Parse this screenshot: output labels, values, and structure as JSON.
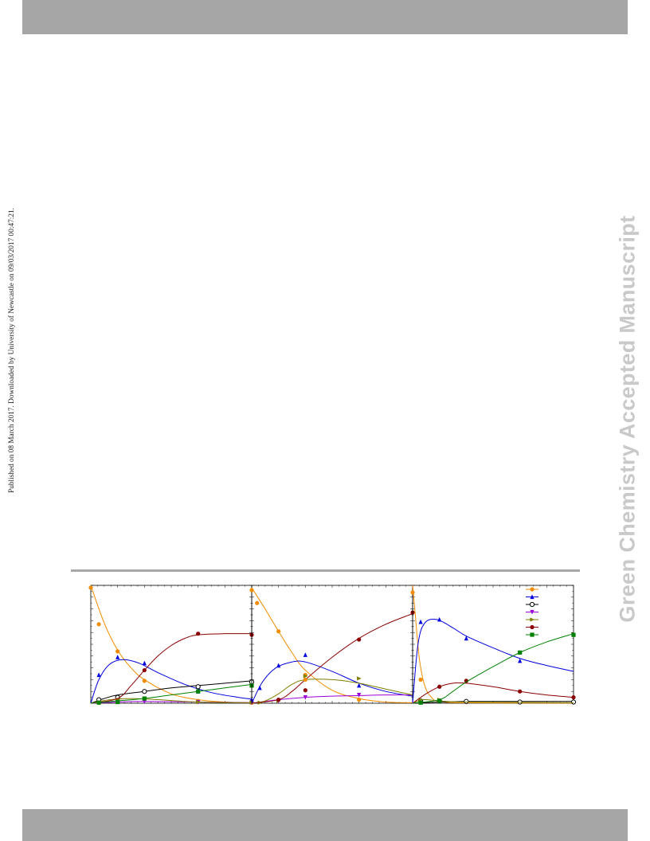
{
  "side_note": "Published on 08 March 2017. Downloaded by University of Newcastle on 09/03/2017 00:47:21.",
  "watermark": "Green Chemistry Accepted Manuscript",
  "chart_data": [
    {
      "type": "line",
      "title": "",
      "ylim": [
        0,
        1
      ],
      "xlim": [
        0,
        6
      ],
      "grid": false,
      "series": [
        {
          "color": "#f28c00",
          "marker": "circle",
          "points": [
            [
              0,
              0.98
            ],
            [
              0.3,
              0.67
            ],
            [
              1,
              0.44
            ],
            [
              2,
              0.19
            ],
            [
              4,
              0.02
            ],
            [
              6,
              0.005
            ]
          ],
          "curve": [
            [
              0,
              1
            ],
            [
              0.5,
              0.68
            ],
            [
              1,
              0.45
            ],
            [
              1.5,
              0.3
            ],
            [
              2,
              0.2
            ],
            [
              3,
              0.08
            ],
            [
              4,
              0.03
            ],
            [
              5,
              0.01
            ],
            [
              6,
              0.003
            ]
          ]
        },
        {
          "color": "#0000dd",
          "marker": "triangle-up",
          "points": [
            [
              0.3,
              0.24
            ],
            [
              1,
              0.39
            ],
            [
              2,
              0.34
            ],
            [
              4,
              0.1
            ],
            [
              6,
              0.03
            ]
          ],
          "curve": [
            [
              0,
              0
            ],
            [
              0.3,
              0.2
            ],
            [
              0.7,
              0.33
            ],
            [
              1.2,
              0.37
            ],
            [
              1.8,
              0.34
            ],
            [
              2.5,
              0.26
            ],
            [
              3.5,
              0.16
            ],
            [
              4.5,
              0.09
            ],
            [
              5.5,
              0.05
            ],
            [
              6,
              0.035
            ]
          ]
        },
        {
          "color": "#000000",
          "marker": "circle-open",
          "points": [
            [
              0.3,
              0.03
            ],
            [
              1,
              0.05
            ],
            [
              2,
              0.1
            ],
            [
              4,
              0.14
            ],
            [
              6,
              0.18
            ]
          ],
          "curve": [
            [
              0,
              0
            ],
            [
              0.5,
              0.04
            ],
            [
              1,
              0.07
            ],
            [
              2,
              0.1
            ],
            [
              3,
              0.13
            ],
            [
              4,
              0.15
            ],
            [
              5,
              0.17
            ],
            [
              6,
              0.19
            ]
          ]
        },
        {
          "color": "#9b00d8",
          "marker": "triangle-down",
          "points": [
            [
              0.3,
              0.005
            ],
            [
              1,
              0.01
            ],
            [
              2,
              0.015
            ],
            [
              4,
              0.01
            ],
            [
              6,
              0.005
            ]
          ],
          "curve": [
            [
              0,
              0
            ],
            [
              1,
              0.01
            ],
            [
              2,
              0.015
            ],
            [
              4,
              0.01
            ],
            [
              6,
              0.005
            ]
          ]
        },
        {
          "color": "#7f7f00",
          "marker": "triangle-right",
          "points": [
            [
              0.3,
              0.01
            ],
            [
              1,
              0.03
            ],
            [
              2,
              0.04
            ],
            [
              4,
              0.01
            ],
            [
              6,
              0.005
            ]
          ],
          "curve": [
            [
              0,
              0
            ],
            [
              0.7,
              0.03
            ],
            [
              1.5,
              0.04
            ],
            [
              2.5,
              0.03
            ],
            [
              4,
              0.01
            ],
            [
              6,
              0.004
            ]
          ]
        },
        {
          "color": "#8b0000",
          "marker": "circle",
          "points": [
            [
              2,
              0.28
            ],
            [
              4,
              0.59
            ],
            [
              6,
              0.58
            ]
          ],
          "curve": [
            [
              0,
              0
            ],
            [
              1,
              0.04
            ],
            [
              1.5,
              0.15
            ],
            [
              2,
              0.28
            ],
            [
              2.5,
              0.4
            ],
            [
              3,
              0.49
            ],
            [
              3.5,
              0.55
            ],
            [
              4,
              0.58
            ],
            [
              5,
              0.59
            ],
            [
              6,
              0.59
            ]
          ]
        },
        {
          "color": "#008000",
          "marker": "square",
          "points": [
            [
              0.3,
              0.005
            ],
            [
              1,
              0.01
            ],
            [
              2,
              0.04
            ],
            [
              4,
              0.1
            ],
            [
              6,
              0.15
            ]
          ],
          "curve": [
            [
              0,
              0
            ],
            [
              1,
              0.02
            ],
            [
              2,
              0.04
            ],
            [
              3,
              0.07
            ],
            [
              4,
              0.1
            ],
            [
              5,
              0.13
            ],
            [
              6,
              0.16
            ]
          ]
        }
      ]
    },
    {
      "type": "line",
      "title": "",
      "ylim": [
        0,
        1
      ],
      "xlim": [
        0,
        6
      ],
      "grid": false,
      "series": [
        {
          "color": "#f28c00",
          "marker": "circle",
          "points": [
            [
              0,
              0.96
            ],
            [
              0.2,
              0.85
            ],
            [
              1,
              0.61
            ],
            [
              2,
              0.24
            ],
            [
              4,
              0.03
            ]
          ],
          "curve": [
            [
              0,
              0.98
            ],
            [
              0.5,
              0.8
            ],
            [
              1,
              0.61
            ],
            [
              1.5,
              0.43
            ],
            [
              2,
              0.28
            ],
            [
              3,
              0.11
            ],
            [
              4,
              0.04
            ],
            [
              5,
              0.01
            ],
            [
              6,
              0.004
            ]
          ]
        },
        {
          "color": "#0000dd",
          "marker": "triangle-up",
          "points": [
            [
              0.3,
              0.13
            ],
            [
              1,
              0.32
            ],
            [
              2,
              0.41
            ],
            [
              4,
              0.15
            ]
          ],
          "curve": [
            [
              0,
              0
            ],
            [
              0.4,
              0.18
            ],
            [
              0.9,
              0.3
            ],
            [
              1.5,
              0.35
            ],
            [
              2,
              0.35
            ],
            [
              3,
              0.27
            ],
            [
              4,
              0.17
            ],
            [
              5,
              0.1
            ],
            [
              6,
              0.06
            ]
          ]
        },
        {
          "color": "#9b00d8",
          "marker": "triangle-down",
          "points": [
            [
              1,
              0.02
            ],
            [
              2,
              0.05
            ],
            [
              4,
              0.07
            ]
          ],
          "curve": [
            [
              0,
              0
            ],
            [
              1,
              0.03
            ],
            [
              2,
              0.05
            ],
            [
              3,
              0.06
            ],
            [
              4,
              0.065
            ],
            [
              5,
              0.07
            ],
            [
              6,
              0.07
            ]
          ]
        },
        {
          "color": "#7f7f00",
          "marker": "triangle-right",
          "points": [
            [
              0.3,
              0.005
            ],
            [
              1,
              0.02
            ],
            [
              2,
              0.23
            ],
            [
              4,
              0.21
            ]
          ],
          "curve": [
            [
              0,
              0
            ],
            [
              0.5,
              0.02
            ],
            [
              1,
              0.08
            ],
            [
              1.5,
              0.16
            ],
            [
              2,
              0.2
            ],
            [
              3,
              0.2
            ],
            [
              4,
              0.17
            ],
            [
              5,
              0.12
            ],
            [
              6,
              0.07
            ]
          ]
        },
        {
          "color": "#8b0000",
          "marker": "circle",
          "points": [
            [
              1,
              0.03
            ],
            [
              2,
              0.11
            ],
            [
              4,
              0.54
            ],
            [
              6,
              0.77
            ]
          ],
          "curve": [
            [
              0,
              0
            ],
            [
              1,
              0.03
            ],
            [
              1.5,
              0.1
            ],
            [
              2,
              0.2
            ],
            [
              3,
              0.39
            ],
            [
              4,
              0.55
            ],
            [
              5,
              0.67
            ],
            [
              6,
              0.76
            ]
          ]
        },
        {
          "color": "#f28c00",
          "marker": "circle",
          "points": [
            [
              2,
              0.2
            ]
          ],
          "curve": []
        }
      ]
    },
    {
      "type": "line",
      "title": "",
      "ylim": [
        0,
        1
      ],
      "xlim": [
        0,
        6
      ],
      "grid": false,
      "series": [
        {
          "color": "#f28c00",
          "marker": "circle",
          "points": [
            [
              0,
              0.94
            ],
            [
              0.3,
              0.2
            ],
            [
              1,
              0.02
            ],
            [
              2,
              0.01
            ]
          ],
          "curve": [
            [
              0,
              1
            ],
            [
              0.1,
              0.75
            ],
            [
              0.25,
              0.38
            ],
            [
              0.45,
              0.15
            ],
            [
              0.7,
              0.05
            ],
            [
              1,
              0.015
            ],
            [
              2,
              0.003
            ],
            [
              6,
              0.001
            ]
          ]
        },
        {
          "color": "#0000dd",
          "marker": "triangle-up",
          "points": [
            [
              0.3,
              0.69
            ],
            [
              1,
              0.71
            ],
            [
              2,
              0.55
            ],
            [
              4,
              0.36
            ]
          ],
          "curve": [
            [
              0,
              0
            ],
            [
              0.2,
              0.5
            ],
            [
              0.45,
              0.68
            ],
            [
              0.9,
              0.71
            ],
            [
              1.5,
              0.64
            ],
            [
              2,
              0.57
            ],
            [
              3,
              0.47
            ],
            [
              4,
              0.38
            ],
            [
              5,
              0.32
            ],
            [
              6,
              0.27
            ]
          ]
        },
        {
          "color": "#000000",
          "marker": "circle-open",
          "points": [
            [
              0.3,
              0.02
            ],
            [
              1,
              0.02
            ],
            [
              2,
              0.015
            ],
            [
              4,
              0.01
            ],
            [
              6,
              0.01
            ]
          ],
          "curve": [
            [
              0,
              0
            ],
            [
              1,
              0.01
            ],
            [
              2,
              0.015
            ],
            [
              4,
              0.015
            ],
            [
              6,
              0.015
            ]
          ]
        },
        {
          "color": "#7f7f00",
          "marker": "triangle-right",
          "points": [
            [
              0.3,
              0.03
            ],
            [
              1,
              0.03
            ]
          ],
          "curve": [
            [
              0,
              0
            ],
            [
              0.4,
              0.03
            ],
            [
              1,
              0.02
            ],
            [
              2,
              0.01
            ],
            [
              6,
              0.004
            ]
          ]
        },
        {
          "color": "#8b0000",
          "marker": "circle",
          "points": [
            [
              1,
              0.14
            ],
            [
              2,
              0.19
            ],
            [
              4,
              0.1
            ],
            [
              6,
              0.05
            ]
          ],
          "curve": [
            [
              0,
              0
            ],
            [
              0.5,
              0.08
            ],
            [
              1,
              0.14
            ],
            [
              1.5,
              0.17
            ],
            [
              2,
              0.17
            ],
            [
              3,
              0.14
            ],
            [
              4,
              0.1
            ],
            [
              5,
              0.07
            ],
            [
              6,
              0.05
            ]
          ]
        },
        {
          "color": "#008000",
          "marker": "square",
          "points": [
            [
              0.3,
              0.005
            ],
            [
              1,
              0.02
            ],
            [
              4,
              0.43
            ],
            [
              6,
              0.58
            ]
          ],
          "curve": [
            [
              0,
              0
            ],
            [
              1,
              0.03
            ],
            [
              1.5,
              0.1
            ],
            [
              2,
              0.18
            ],
            [
              3,
              0.31
            ],
            [
              4,
              0.43
            ],
            [
              5,
              0.52
            ],
            [
              6,
              0.59
            ]
          ]
        }
      ],
      "legend": {
        "placement": "top-right",
        "entries": [
          {
            "color": "#f28c00",
            "marker": "circle"
          },
          {
            "color": "#0000dd",
            "marker": "triangle-up"
          },
          {
            "color": "#000000",
            "marker": "circle-open"
          },
          {
            "color": "#9b00d8",
            "marker": "triangle-down"
          },
          {
            "color": "#7f7f00",
            "marker": "triangle-right"
          },
          {
            "color": "#8b0000",
            "marker": "circle"
          },
          {
            "color": "#008000",
            "marker": "square"
          }
        ]
      }
    }
  ]
}
